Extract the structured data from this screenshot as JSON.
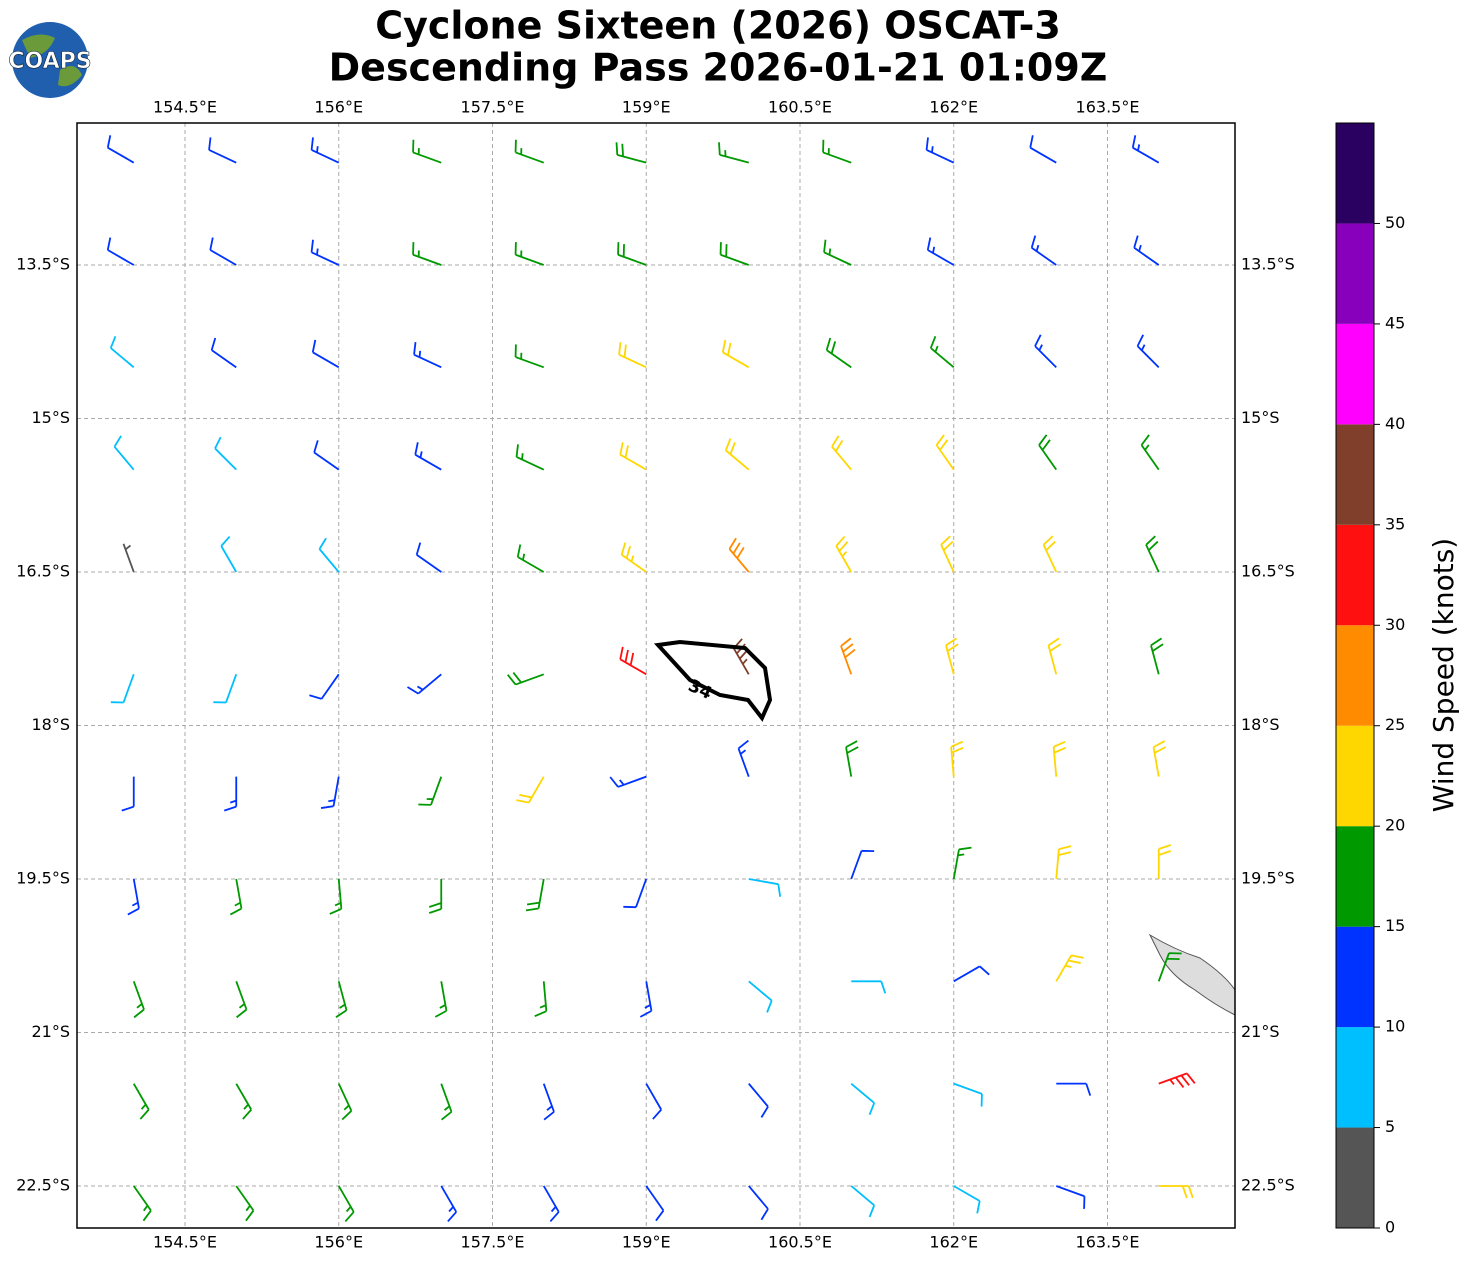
{
  "logo": "COAPS",
  "header": {
    "title_line1": "Cyclone Sixteen (2026) OSCAT-3",
    "title_line2": "Descending Pass 2026-01-21 01:09Z"
  },
  "map": {
    "lon_ticks": [
      {
        "value": 154.5,
        "label": "154.5°E"
      },
      {
        "value": 156,
        "label": "156°E"
      },
      {
        "value": 157.5,
        "label": "157.5°E"
      },
      {
        "value": 159,
        "label": "159°E"
      },
      {
        "value": 160.5,
        "label": "160.5°E"
      },
      {
        "value": 162,
        "label": "162°E"
      },
      {
        "value": 163.5,
        "label": "163.5°E"
      }
    ],
    "lat_ticks": [
      {
        "value": -13.5,
        "label": "13.5°S"
      },
      {
        "value": -15,
        "label": "15°S"
      },
      {
        "value": -16.5,
        "label": "16.5°S"
      },
      {
        "value": -18,
        "label": "18°S"
      },
      {
        "value": -19.5,
        "label": "19.5°S"
      },
      {
        "value": -21,
        "label": "21°S"
      },
      {
        "value": -22.5,
        "label": "22.5°S"
      }
    ],
    "contour_label": "34",
    "wind": {
      "lons": [
        154,
        155,
        156,
        157,
        158,
        159,
        160,
        161,
        162,
        163,
        164
      ],
      "lats": [
        -12.5,
        -13.5,
        -14.5,
        -15.5,
        -16.5,
        -17.5,
        -18.5,
        -19.5,
        -20.5,
        -21.5,
        -22.5
      ],
      "speed": [
        [
          12,
          12,
          13,
          16,
          17,
          18,
          17,
          15,
          13,
          12,
          14
        ],
        [
          11,
          12,
          13,
          15,
          17,
          18,
          18,
          16,
          14,
          13,
          14
        ],
        [
          8,
          11,
          12,
          14,
          17,
          21,
          22,
          19,
          16,
          14,
          13
        ],
        [
          8,
          9,
          12,
          13,
          16,
          21,
          22,
          22,
          21,
          18,
          16
        ],
        [
          4,
          8,
          9,
          12,
          17,
          24,
          28,
          24,
          22,
          21,
          19
        ],
        [
          9,
          9,
          10,
          13,
          19,
          32,
          37,
          28,
          22,
          21,
          18
        ],
        [
          12,
          13,
          14,
          16,
          22,
          14,
          13,
          19,
          22,
          20,
          22
        ],
        [
          14,
          15,
          16,
          18,
          19,
          12,
          8,
          12,
          16,
          22,
          20
        ],
        [
          15,
          15,
          16,
          16,
          15,
          13,
          9,
          8,
          10,
          24,
          18
        ],
        [
          15,
          16,
          16,
          15,
          13,
          12,
          10,
          9,
          8,
          12,
          33
        ],
        [
          16,
          16,
          15,
          14,
          13,
          12,
          10,
          9,
          8,
          10,
          22
        ]
      ],
      "direction": [
        [
          300,
          295,
          295,
          290,
          290,
          285,
          285,
          290,
          295,
          300,
          300
        ],
        [
          300,
          300,
          295,
          290,
          290,
          290,
          290,
          295,
          300,
          305,
          305
        ],
        [
          310,
          305,
          300,
          295,
          290,
          295,
          300,
          305,
          310,
          315,
          315
        ],
        [
          320,
          315,
          305,
          300,
          295,
          300,
          310,
          320,
          325,
          325,
          325
        ],
        [
          340,
          330,
          320,
          305,
          300,
          305,
          320,
          330,
          335,
          335,
          335
        ],
        [
          200,
          200,
          215,
          230,
          250,
          300,
          330,
          340,
          345,
          345,
          345
        ],
        [
          180,
          180,
          190,
          200,
          210,
          250,
          340,
          350,
          355,
          355,
          350
        ],
        [
          170,
          170,
          175,
          180,
          190,
          200,
          100,
          20,
          10,
          5,
          0
        ],
        [
          160,
          160,
          165,
          170,
          175,
          170,
          130,
          90,
          60,
          30,
          20
        ],
        [
          150,
          150,
          155,
          160,
          160,
          150,
          140,
          130,
          110,
          90,
          70
        ],
        [
          145,
          145,
          150,
          150,
          150,
          145,
          140,
          130,
          120,
          110,
          90
        ]
      ]
    }
  },
  "colorbar": {
    "label": "Wind Speed (knots)",
    "bounds": [
      0,
      5,
      10,
      15,
      20,
      25,
      30,
      35,
      40,
      45,
      50,
      55
    ],
    "colors": [
      "#555555",
      "#00bfff",
      "#0033ff",
      "#009900",
      "#ffd700",
      "#ff8c00",
      "#ff1010",
      "#7f3f2a",
      "#ff00ff",
      "#8800bb",
      "#2a0060"
    ],
    "ticks": [
      0,
      5,
      10,
      15,
      20,
      25,
      30,
      35,
      40,
      45,
      50
    ]
  }
}
